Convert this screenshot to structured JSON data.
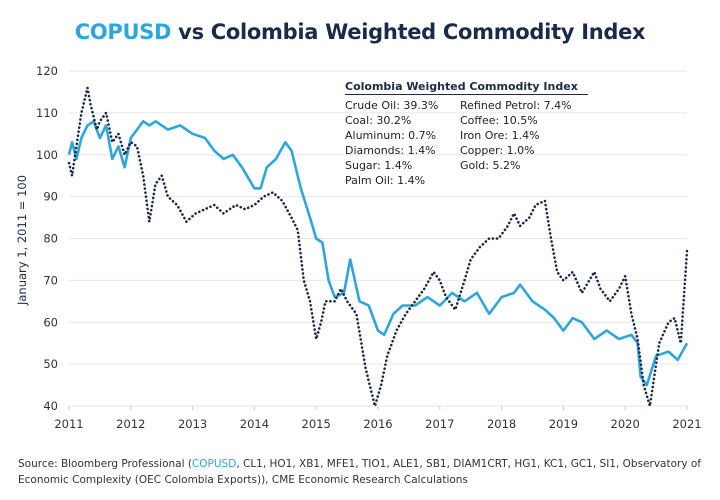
{
  "title": {
    "highlight": "COPUSD",
    "rest": " vs Colombia Weighted Commodity Index"
  },
  "legend": {
    "title": "Colombia Weighted Commodity Index",
    "col1": [
      "Crude Oil: 39.3%",
      "Coal: 30.2%",
      "Aluminum: 0.7%",
      "Diamonds: 1.4%",
      "Sugar: 1.4%",
      "Palm Oil: 1.4%"
    ],
    "col2": [
      "Refined Petrol: 7.4%",
      "Coffee: 10.5%",
      "Iron Ore: 1.4%",
      "Copper: 1.0%",
      "Gold: 5.2%"
    ]
  },
  "source": {
    "prefix": "Source: Bloomberg Professional (",
    "highlight": "COPUSD",
    "suffix": ", CL1, HO1, XB1, MFE1, TIO1, ALE1, SB1, DIAM1CRT, HG1, KC1, GC1, SI1, Observatory of Economic Complexity (OEC Colombia Exports)), CME Economic Research Calculations"
  },
  "colors": {
    "copusd": "#2ea6dc",
    "index": "#1b2a47",
    "grid": "#e6e6e6"
  },
  "chart_data": {
    "type": "line",
    "title": "COPUSD vs Colombia Weighted Commodity Index",
    "xlabel": "",
    "ylabel": "January 1, 2011 = 100",
    "xlim": [
      2011,
      2021
    ],
    "ylim": [
      40,
      120
    ],
    "xticks": [
      "2011",
      "2012",
      "2013",
      "2014",
      "2015",
      "2016",
      "2017",
      "2018",
      "2019",
      "2020",
      "2021"
    ],
    "yticks": [
      40,
      50,
      60,
      70,
      80,
      90,
      100,
      110,
      120
    ],
    "grid": "horizontal",
    "series": [
      {
        "name": "COPUSD",
        "style": "solid",
        "x": [
          2011.0,
          2011.05,
          2011.12,
          2011.2,
          2011.3,
          2011.4,
          2011.5,
          2011.6,
          2011.7,
          2011.8,
          2011.9,
          2012.0,
          2012.1,
          2012.2,
          2012.3,
          2012.4,
          2012.5,
          2012.6,
          2012.8,
          2013.0,
          2013.2,
          2013.35,
          2013.5,
          2013.65,
          2013.8,
          2014.0,
          2014.1,
          2014.2,
          2014.35,
          2014.5,
          2014.6,
          2014.75,
          2014.9,
          2015.0,
          2015.1,
          2015.2,
          2015.3,
          2015.45,
          2015.55,
          2015.7,
          2015.85,
          2016.0,
          2016.1,
          2016.25,
          2016.4,
          2016.6,
          2016.8,
          2017.0,
          2017.2,
          2017.4,
          2017.6,
          2017.8,
          2018.0,
          2018.2,
          2018.3,
          2018.5,
          2018.7,
          2018.85,
          2019.0,
          2019.15,
          2019.3,
          2019.5,
          2019.7,
          2019.9,
          2020.1,
          2020.2,
          2020.25,
          2020.35,
          2020.5,
          2020.7,
          2020.85,
          2021.0
        ],
        "values": [
          100,
          103,
          99,
          104,
          107,
          108,
          104,
          107,
          99,
          102,
          97,
          104,
          106,
          108,
          107,
          108,
          107,
          106,
          107,
          105,
          104,
          101,
          99,
          100,
          97,
          92,
          92,
          97,
          99,
          103,
          101,
          92,
          85,
          80,
          79,
          70,
          66,
          67,
          75,
          65,
          64,
          58,
          57,
          62,
          64,
          64,
          66,
          64,
          67,
          65,
          67,
          62,
          66,
          67,
          69,
          65,
          63,
          61,
          58,
          61,
          60,
          56,
          58,
          56,
          57,
          55,
          47,
          45,
          52,
          53,
          51,
          55
        ]
      },
      {
        "name": "Colombia Weighted Commodity Index",
        "style": "dotted",
        "x": [
          2011.0,
          2011.05,
          2011.12,
          2011.2,
          2011.3,
          2011.35,
          2011.45,
          2011.5,
          2011.6,
          2011.7,
          2011.8,
          2011.9,
          2012.0,
          2012.1,
          2012.2,
          2012.3,
          2012.4,
          2012.5,
          2012.6,
          2012.75,
          2012.9,
          2013.05,
          2013.2,
          2013.35,
          2013.5,
          2013.7,
          2013.85,
          2014.0,
          2014.15,
          2014.3,
          2014.45,
          2014.6,
          2014.7,
          2014.8,
          2014.9,
          2015.0,
          2015.08,
          2015.15,
          2015.3,
          2015.4,
          2015.5,
          2015.65,
          2015.8,
          2015.95,
          2016.05,
          2016.15,
          2016.3,
          2016.45,
          2016.6,
          2016.75,
          2016.9,
          2017.0,
          2017.1,
          2017.25,
          2017.4,
          2017.5,
          2017.65,
          2017.8,
          2017.95,
          2018.1,
          2018.2,
          2018.3,
          2018.45,
          2018.55,
          2018.7,
          2018.8,
          2018.9,
          2019.0,
          2019.15,
          2019.3,
          2019.5,
          2019.6,
          2019.75,
          2019.9,
          2020.0,
          2020.1,
          2020.2,
          2020.3,
          2020.4,
          2020.55,
          2020.7,
          2020.8,
          2020.9,
          2021.0
        ],
        "values": [
          98,
          95,
          102,
          110,
          116,
          112,
          106,
          108,
          110,
          103,
          105,
          100,
          103,
          102,
          95,
          84,
          93,
          95,
          90,
          88,
          84,
          86,
          87,
          88,
          86,
          88,
          87,
          88,
          90,
          91,
          89,
          85,
          82,
          70,
          65,
          56,
          60,
          65,
          65,
          68,
          65,
          62,
          49,
          40,
          45,
          52,
          58,
          62,
          65,
          68,
          72,
          70,
          66,
          63,
          70,
          75,
          78,
          80,
          80,
          83,
          86,
          83,
          85,
          88,
          89,
          80,
          72,
          70,
          72,
          67,
          72,
          68,
          65,
          68,
          71,
          62,
          56,
          45,
          40,
          55,
          60,
          61,
          55,
          77
        ]
      }
    ]
  }
}
